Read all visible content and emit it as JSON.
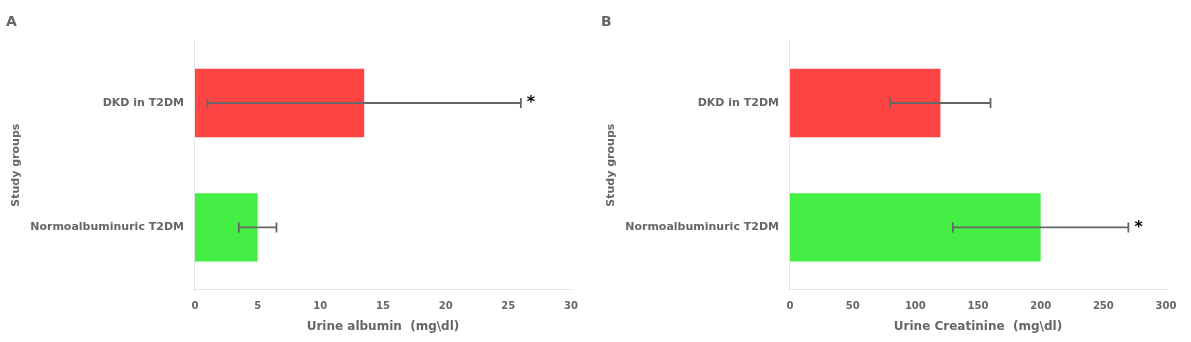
{
  "chart_data": [
    {
      "type": "bar",
      "orientation": "horizontal",
      "title": "A",
      "categories": [
        "Normoalbuminuric T2DM",
        "DKD in T2DM"
      ],
      "values": [
        5.0,
        13.5
      ],
      "errors": [
        1.5,
        12.5
      ],
      "colors": [
        "#44EE44",
        "#FF4444"
      ],
      "xlabel": "Urine albumin  (mg\\dl)",
      "ylabel": "Study groups",
      "xlim": [
        0,
        30
      ],
      "xticks": [
        0,
        5,
        10,
        15,
        20,
        25,
        30
      ],
      "grid": false,
      "annotations": [
        {
          "text": "*",
          "category": "DKD in T2DM"
        }
      ]
    },
    {
      "type": "bar",
      "orientation": "horizontal",
      "title": "B",
      "categories": [
        "Normoalbuminuric T2DM",
        "DKD in T2DM"
      ],
      "values": [
        200,
        120
      ],
      "errors": [
        70,
        40
      ],
      "colors": [
        "#44EE44",
        "#FF4444"
      ],
      "xlabel": "Urine Creatinine  (mg\\dl)",
      "ylabel": "Study groups",
      "xlim": [
        0,
        300
      ],
      "xticks": [
        0,
        50,
        100,
        150,
        200,
        250,
        300
      ],
      "grid": false,
      "annotations": [
        {
          "text": "*",
          "category": "Normoalbuminuric T2DM"
        }
      ]
    }
  ]
}
